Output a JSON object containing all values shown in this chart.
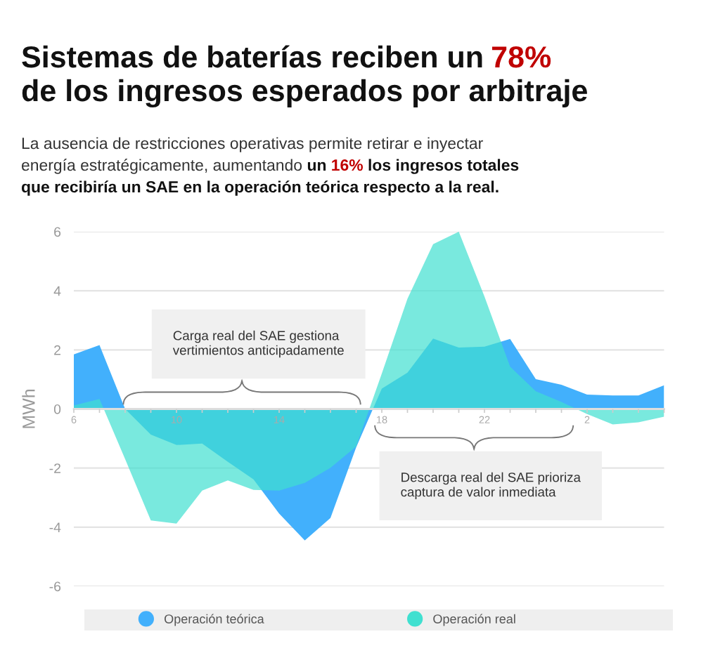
{
  "chart_data": {
    "type": "area",
    "title": "Sistemas de baterías reciben un 78%\nde los ingresos esperados por arbitraje",
    "subtitle": "La ausencia de restricciones operativas permite retirar e inyectar\nenergía estratégicamente, aumentando un 16% los ingresos totales\nque recibiría un SAE en la operación teórica respecto a la real.",
    "ylabel": "MWh",
    "categories": [
      "6",
      null,
      null,
      null,
      "10",
      null,
      null,
      null,
      "14",
      null,
      null,
      null,
      "18",
      null,
      null,
      null,
      "22",
      null,
      null,
      null,
      "2",
      null,
      null,
      null
    ],
    "ylim": [
      -6,
      6
    ],
    "yticks": [
      -6,
      -4,
      -2,
      0,
      2,
      4,
      6
    ],
    "grid": "y",
    "legend": "bottom",
    "series": [
      {
        "name": "Operación teórica",
        "color": "#42b0fc",
        "values": [
          1.85,
          2.16,
          0,
          -0.87,
          -1.22,
          -1.17,
          -1.79,
          -2.38,
          -3.54,
          -4.45,
          -3.69,
          -1.3,
          0.69,
          1.23,
          2.38,
          2.08,
          2.11,
          2.37,
          1.01,
          0.82,
          0.49,
          0.46,
          0.46,
          0.8
        ]
      },
      {
        "name": "Operación real",
        "color": "#40e0d0",
        "values": [
          0.12,
          0.34,
          -1.7,
          -3.77,
          -3.88,
          -2.76,
          -2.42,
          -2.74,
          -2.76,
          -2.5,
          -1.99,
          -1.27,
          1.2,
          3.73,
          5.58,
          6,
          3.81,
          1.43,
          0.6,
          0.24,
          -0.17,
          -0.52,
          -0.45,
          -0.26
        ]
      }
    ],
    "annotations": [
      "Carga real del SAE gestiona\nvertimientos anticipadamente",
      "Descarga real del SAE prioriza\ncaptura de valor inmediata"
    ]
  }
}
